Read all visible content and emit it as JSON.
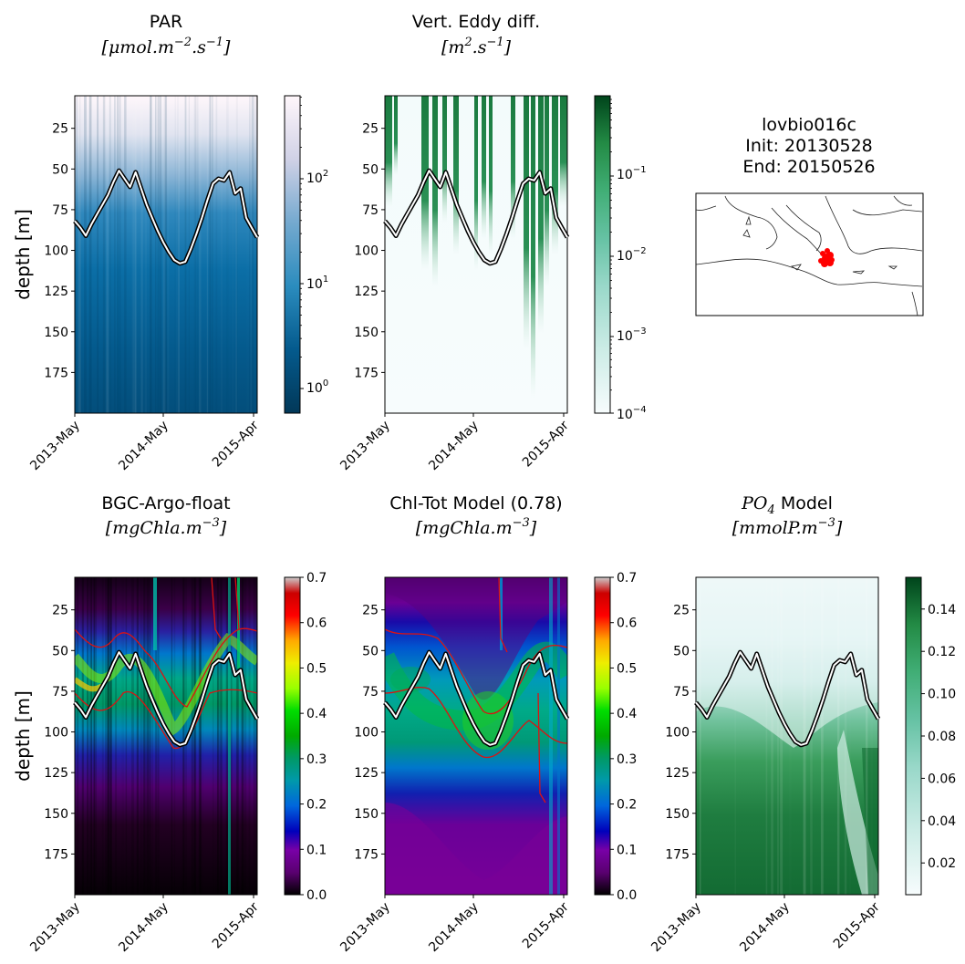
{
  "figure": {
    "ylabel": "depth [m]",
    "info": {
      "float_id": "lovbio016c",
      "init_line": "Init: 20130528",
      "end_line": "End:  20150526"
    }
  },
  "panels": {
    "par": {
      "title1": "PAR",
      "title2": "[μmol.m",
      "title2_exp": "−2",
      "title2_mid": ".s",
      "title2_exp2": "−1",
      "title2_end": "]"
    },
    "eddy": {
      "title1": "Vert. Eddy diff.",
      "title2": "[m",
      "title2_exp": "2",
      "title2_mid": ".s",
      "title2_exp2": "−1",
      "title2_end": "]"
    },
    "argo": {
      "title1": "BGC-Argo-float",
      "title2": "[mgChla.m",
      "title2_exp": "−3",
      "title2_end": "]"
    },
    "chl": {
      "title1": "Chl-Tot Model (0.78)",
      "title2": "[mgChla.m",
      "title2_exp": "−3",
      "title2_end": "]"
    },
    "po4": {
      "title1_a": "PO",
      "title1_sub": "4",
      "title1_b": " Model",
      "title2": "[mmolP.m",
      "title2_exp": "−3",
      "title2_end": "]"
    }
  },
  "chart_data": [
    {
      "id": "par",
      "type": "heatmap",
      "colormap": "PuBu_r",
      "scale": "log",
      "x_ticks": [
        "2013-May",
        "2014-May",
        "2015-Apr"
      ],
      "y_ticks": [
        25,
        50,
        75,
        100,
        125,
        150,
        175
      ],
      "ylim": [
        200,
        5
      ],
      "colorbar": {
        "ticks": [
          "10^0",
          "10^1",
          "10^2"
        ],
        "range": [
          0.7,
          500
        ]
      },
      "mld_line": true
    },
    {
      "id": "eddy",
      "type": "heatmap",
      "colormap": "BuGn",
      "scale": "log",
      "x_ticks": [
        "2013-May",
        "2014-May",
        "2015-Apr"
      ],
      "y_ticks": [
        25,
        50,
        75,
        100,
        125,
        150,
        175
      ],
      "ylim": [
        200,
        5
      ],
      "colorbar": {
        "ticks": [
          "10^-1",
          "10^-2",
          "10^-3",
          "10^-4"
        ],
        "range": [
          0.0001,
          0.8
        ]
      },
      "mld_line": true
    },
    {
      "id": "argo",
      "type": "heatmap",
      "colormap": "nipy_spectral",
      "x_ticks": [
        "2013-May",
        "2014-May",
        "2015-Apr"
      ],
      "y_ticks": [
        25,
        50,
        75,
        100,
        125,
        150,
        175
      ],
      "ylim": [
        200,
        5
      ],
      "colorbar": {
        "ticks": [
          "0.0",
          "0.1",
          "0.2",
          "0.3",
          "0.4",
          "0.5",
          "0.6",
          "0.7"
        ],
        "range": [
          0,
          0.7
        ]
      },
      "mld_line": true,
      "red_contours": true
    },
    {
      "id": "chl",
      "type": "heatmap",
      "colormap": "nipy_spectral",
      "x_ticks": [
        "2013-May",
        "2014-May",
        "2015-Apr"
      ],
      "y_ticks": [
        25,
        50,
        75,
        100,
        125,
        150,
        175
      ],
      "ylim": [
        200,
        5
      ],
      "colorbar": {
        "ticks": [
          "0.0",
          "0.1",
          "0.2",
          "0.3",
          "0.4",
          "0.5",
          "0.6",
          "0.7"
        ],
        "range": [
          0,
          0.7
        ]
      },
      "mld_line": true,
      "red_contours": true
    },
    {
      "id": "po4",
      "type": "heatmap",
      "colormap": "BuGn",
      "x_ticks": [
        "2013-May",
        "2014-May",
        "2015-Apr"
      ],
      "y_ticks": [
        25,
        50,
        75,
        100,
        125,
        150,
        175
      ],
      "ylim": [
        200,
        5
      ],
      "colorbar": {
        "ticks": [
          "0.02",
          "0.04",
          "0.06",
          "0.08",
          "0.10",
          "0.12",
          "0.14"
        ],
        "range": [
          0.005,
          0.155
        ]
      },
      "mld_line": true
    }
  ],
  "mld_depths": [
    82,
    86,
    91,
    84,
    78,
    72,
    66,
    58,
    51,
    56,
    61,
    52,
    62,
    72,
    80,
    88,
    95,
    101,
    106,
    108,
    107,
    99,
    90,
    80,
    69,
    59,
    56,
    57,
    52,
    65,
    62,
    80,
    86,
    92
  ]
}
